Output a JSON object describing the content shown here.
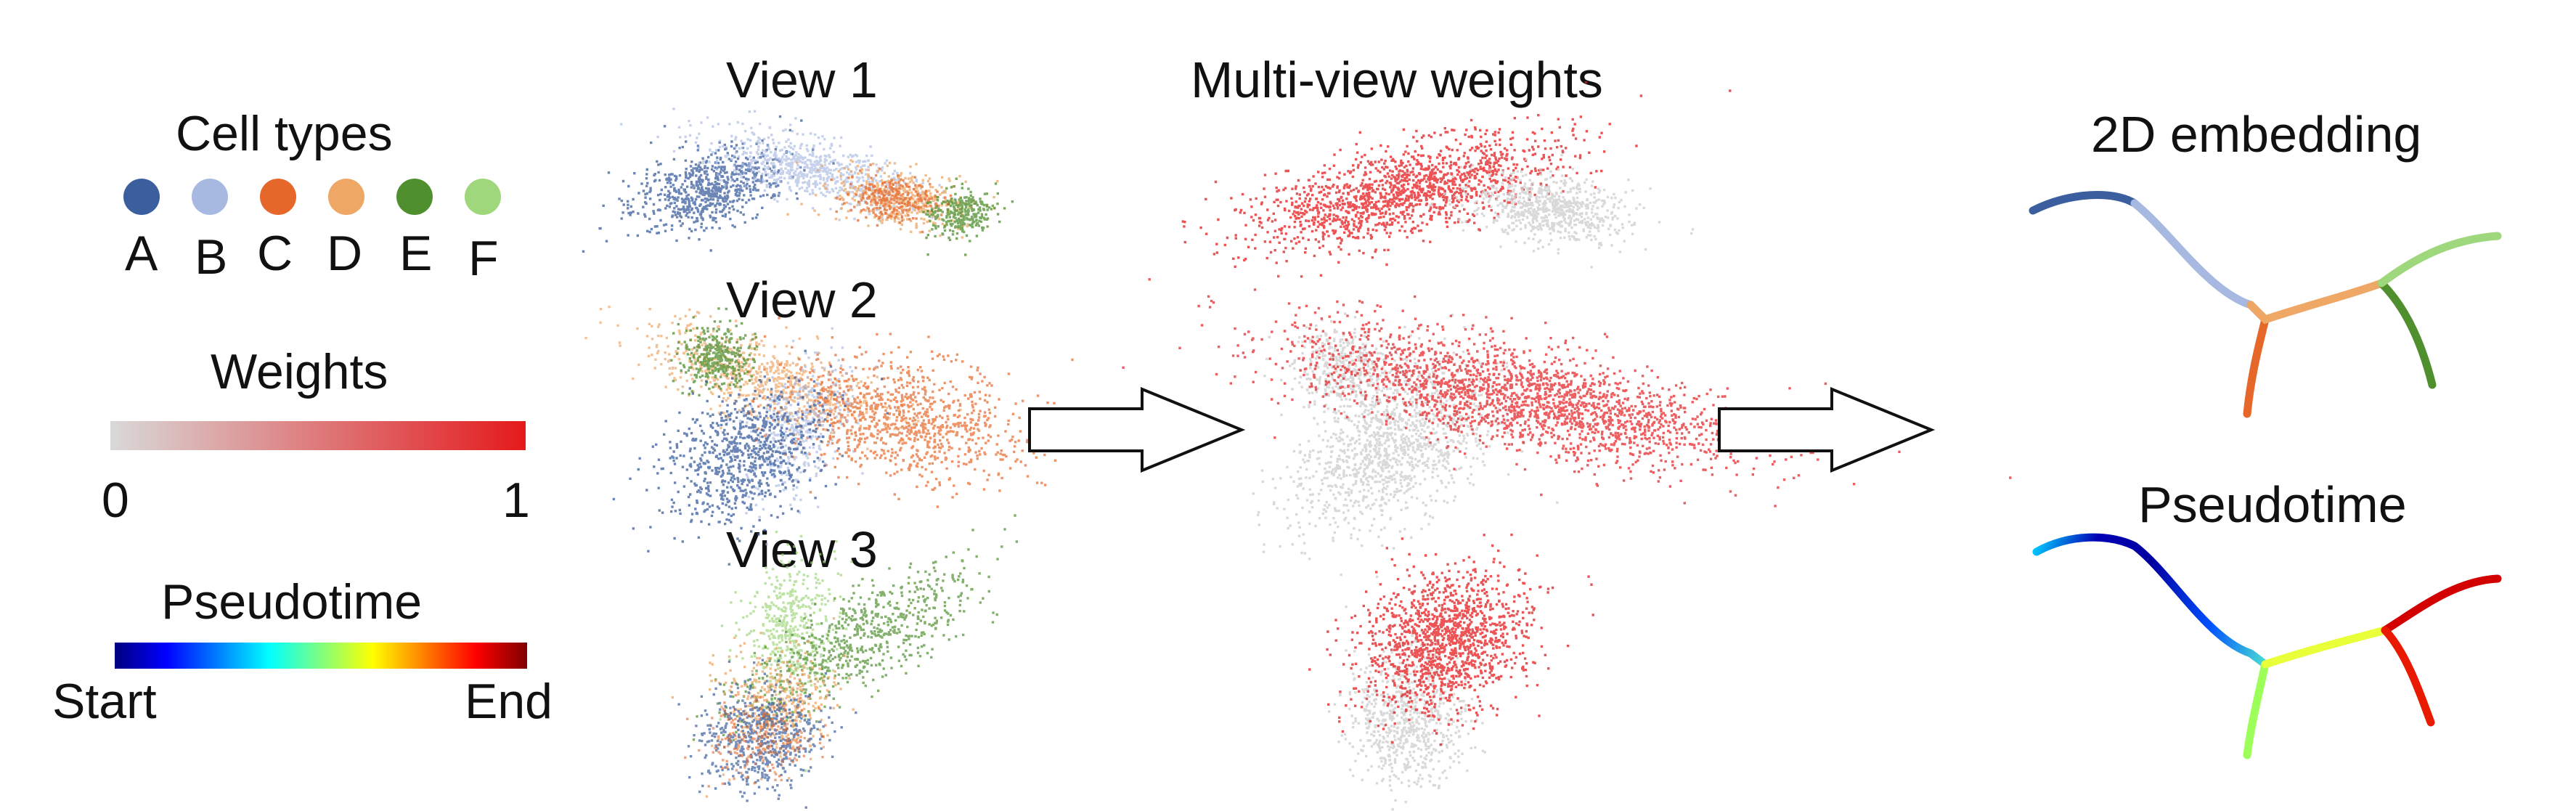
{
  "legend": {
    "cell_types": {
      "title": "Cell types",
      "items": [
        {
          "label": "A",
          "color": "#3a5e9e"
        },
        {
          "label": "B",
          "color": "#a7b9e0"
        },
        {
          "label": "C",
          "color": "#e5672a"
        },
        {
          "label": "D",
          "color": "#eea765"
        },
        {
          "label": "E",
          "color": "#4f8f2e"
        },
        {
          "label": "F",
          "color": "#9fd77c"
        }
      ]
    },
    "weights": {
      "title": "Weights",
      "min_label": "0",
      "max_label": "1",
      "color_low": "#d9d9d9",
      "color_high": "#e41a1c"
    },
    "pseudotime": {
      "title": "Pseudotime",
      "start_label": "Start",
      "end_label": "End",
      "colormap": "jet"
    }
  },
  "views": [
    {
      "title": "View 1"
    },
    {
      "title": "View 2"
    },
    {
      "title": "View 3"
    }
  ],
  "multiview": {
    "title": "Multi-view weights"
  },
  "outputs": {
    "embedding_title": "2D embedding",
    "pseudotime_title": "Pseudotime"
  },
  "colors": {
    "weight_high": "#e41a1c",
    "weight_low": "#cfcfcf"
  }
}
